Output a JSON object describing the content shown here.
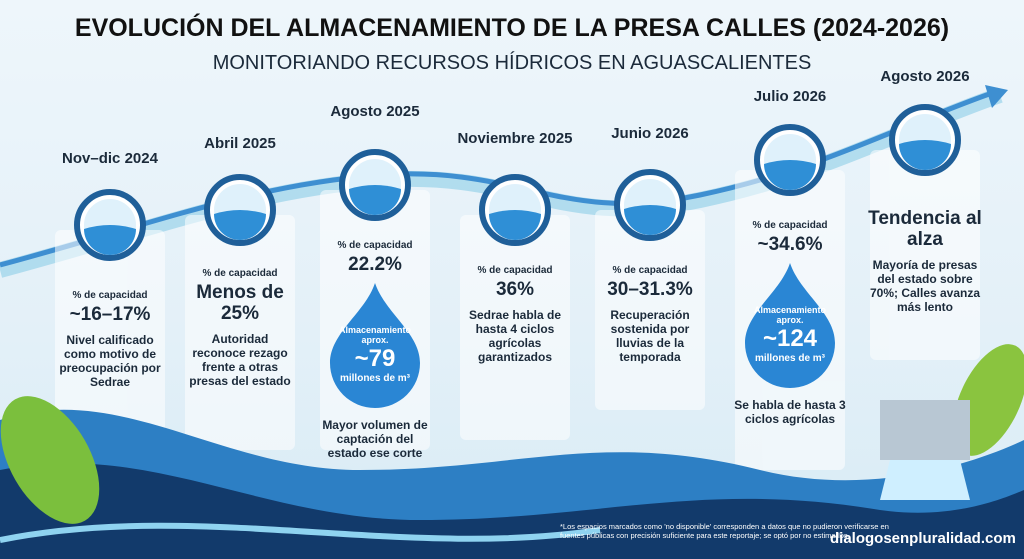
{
  "header": {
    "title": "EVOLUCIÓN DEL ALMACENAMIENTO DE LA PRESA CALLES (2024-2026)",
    "subtitle": "MONITORIANDO RECURSOS HÍDRICOS EN AGUASCALIENTES"
  },
  "timeline": [
    {
      "period": "Nov–dic 2024",
      "metric": "% de capacidad",
      "value": "~16–17%",
      "note": "Nivel calificado como motivo de preocupación por Sedrae"
    },
    {
      "period": "Abril 2025",
      "metric": "% de capacidad",
      "value": "Menos de 25%",
      "note": "Autoridad reconoce rezago frente a otras presas del estado"
    },
    {
      "period": "Agosto 2025",
      "metric": "% de capacidad",
      "value": "22.2%",
      "drop": {
        "label": "Almacenamiento aprox.",
        "value": "~79",
        "unit": "millones de m³"
      },
      "note": "Mayor volumen de captación del estado ese corte"
    },
    {
      "period": "Noviembre 2025",
      "metric": "% de capacidad",
      "value": "36%",
      "note": "Sedrae habla de hasta 4 ciclos agrícolas garantizados"
    },
    {
      "period": "Junio 2026",
      "metric": "% de capacidad",
      "value": "30–31.3%",
      "note": "Recuperación sostenida por lluvias de la temporada"
    },
    {
      "period": "Julio 2026",
      "metric": "% de capacidad",
      "value": "~34.6%",
      "drop": {
        "label": "Almacenamiento aprox.",
        "value": "~124",
        "unit": "millones de m³"
      },
      "note": "Se habla de hasta 3 ciclos agrícolas"
    },
    {
      "period": "Agosto 2026",
      "value": "Tendencia al alza",
      "note": "Mayoría de presas del estado sobre 70%; Calles avanza más lento"
    }
  ],
  "footer": {
    "footnote": "*Los espacios marcados como 'no disponible' corresponden a datos que no pudieron verificarse en fuentes públicas con precisión suficiente para este reportaje; se optó por no estimarlos.",
    "brand": "dialogosenpluralidad.com"
  }
}
